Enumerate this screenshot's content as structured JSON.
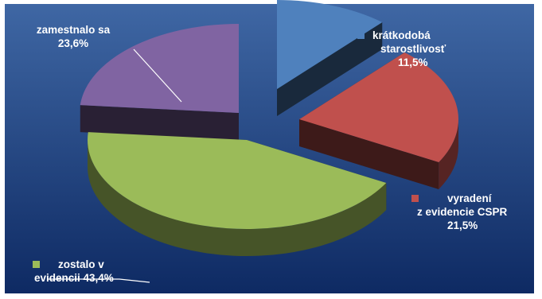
{
  "chart_data": {
    "type": "pie",
    "style": "3d-exploded",
    "slices": [
      {
        "label_lines": [
          "krátkodobá",
          "starostlivosť",
          "11,5%"
        ],
        "value": 11.5,
        "color": "#4f81bd"
      },
      {
        "label_lines": [
          "vyradení",
          "z evidencie CSPR",
          "21,5%"
        ],
        "value": 21.5,
        "color": "#c0504d"
      },
      {
        "label_lines": [
          "zostalo v",
          "evidencii 43,4%"
        ],
        "value": 43.4,
        "color": "#9bbb59"
      },
      {
        "label_lines": [
          "zamestnalo sa",
          "23,6%"
        ],
        "value": 23.6,
        "color": "#8064a2"
      }
    ],
    "background": {
      "top": "#3f67a4",
      "bottom": "#0e2a63"
    }
  }
}
